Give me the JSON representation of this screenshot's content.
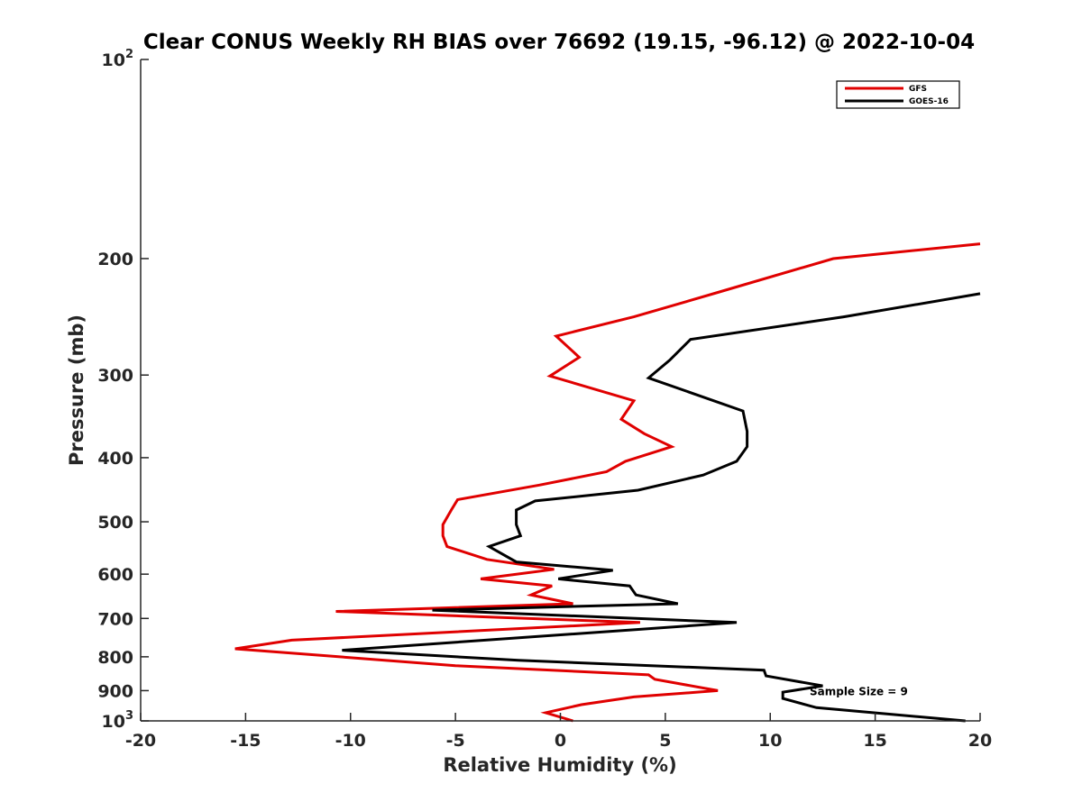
{
  "chart_data": {
    "type": "line",
    "title": "Clear CONUS Weekly RH BIAS over 76692 (19.15, -96.12) @ 2022-10-04",
    "xlabel": "Relative Humidity (%)",
    "ylabel": "Pressure (mb)",
    "xlim": [
      -20,
      20
    ],
    "ylim": [
      100,
      1000
    ],
    "yscale": "log",
    "y_reversed": true,
    "x_ticks": [
      -20,
      -15,
      -10,
      -5,
      0,
      5,
      10,
      15,
      20
    ],
    "y_ticks": [
      {
        "value": 100,
        "label": "10",
        "exp": "2"
      },
      {
        "value": 200,
        "label": "200"
      },
      {
        "value": 300,
        "label": "300"
      },
      {
        "value": 400,
        "label": "400"
      },
      {
        "value": 500,
        "label": "500"
      },
      {
        "value": 600,
        "label": "600"
      },
      {
        "value": 700,
        "label": "700"
      },
      {
        "value": 800,
        "label": "800"
      },
      {
        "value": 900,
        "label": "900"
      },
      {
        "value": 1000,
        "label": "10",
        "exp": "3"
      }
    ],
    "grid": false,
    "legend_position": "top-right",
    "annotation": {
      "text": "Sample Size = 9",
      "x": 12.5,
      "y": 900
    },
    "series": [
      {
        "name": "GFS",
        "color": "#e00000",
        "points": [
          [
            20,
            190
          ],
          [
            13,
            200
          ],
          [
            7.5,
            225
          ],
          [
            3.5,
            245
          ],
          [
            -0.2,
            262
          ],
          [
            0.9,
            282
          ],
          [
            -0.5,
            301
          ],
          [
            3.5,
            328
          ],
          [
            2.9,
            350
          ],
          [
            4,
            368
          ],
          [
            5.3,
            385
          ],
          [
            3.1,
            405
          ],
          [
            2.2,
            420
          ],
          [
            -1,
            440
          ],
          [
            -4.9,
            463
          ],
          [
            -5.2,
            480
          ],
          [
            -5.6,
            505
          ],
          [
            -5.6,
            525
          ],
          [
            -5.4,
            545
          ],
          [
            -3.5,
            570
          ],
          [
            -0.3,
            590
          ],
          [
            -3.8,
            610
          ],
          [
            -0.4,
            625
          ],
          [
            -1.4,
            645
          ],
          [
            0.6,
            665
          ],
          [
            -10.7,
            683
          ],
          [
            3.8,
            710
          ],
          [
            -12.8,
            755
          ],
          [
            -15.5,
            778
          ],
          [
            -5,
            825
          ],
          [
            4.2,
            852
          ],
          [
            4.5,
            865
          ],
          [
            7.5,
            900
          ],
          [
            3.5,
            920
          ],
          [
            1,
            945
          ],
          [
            -0.7,
            972
          ],
          [
            0.6,
            1000
          ]
        ]
      },
      {
        "name": "GOES-16",
        "color": "#000000",
        "points": [
          [
            20,
            226
          ],
          [
            13.5,
            245
          ],
          [
            6.2,
            265
          ],
          [
            5.2,
            285
          ],
          [
            4.2,
            303
          ],
          [
            8.7,
            340
          ],
          [
            8.9,
            365
          ],
          [
            8.9,
            385
          ],
          [
            8.4,
            405
          ],
          [
            6.8,
            425
          ],
          [
            3.7,
            448
          ],
          [
            -1.2,
            465
          ],
          [
            -2.1,
            480
          ],
          [
            -2.1,
            505
          ],
          [
            -1.9,
            525
          ],
          [
            -3.4,
            545
          ],
          [
            -2.1,
            575
          ],
          [
            2.5,
            592
          ],
          [
            -0.1,
            610
          ],
          [
            3.3,
            625
          ],
          [
            3.6,
            645
          ],
          [
            5.6,
            665
          ],
          [
            -6.1,
            680
          ],
          [
            8.4,
            710
          ],
          [
            -10.4,
            782
          ],
          [
            -2,
            810
          ],
          [
            9.7,
            838
          ],
          [
            9.8,
            855
          ],
          [
            12.5,
            885
          ],
          [
            10.6,
            905
          ],
          [
            10.6,
            925
          ],
          [
            12.2,
            955
          ],
          [
            19.3,
            1000
          ]
        ]
      }
    ]
  }
}
